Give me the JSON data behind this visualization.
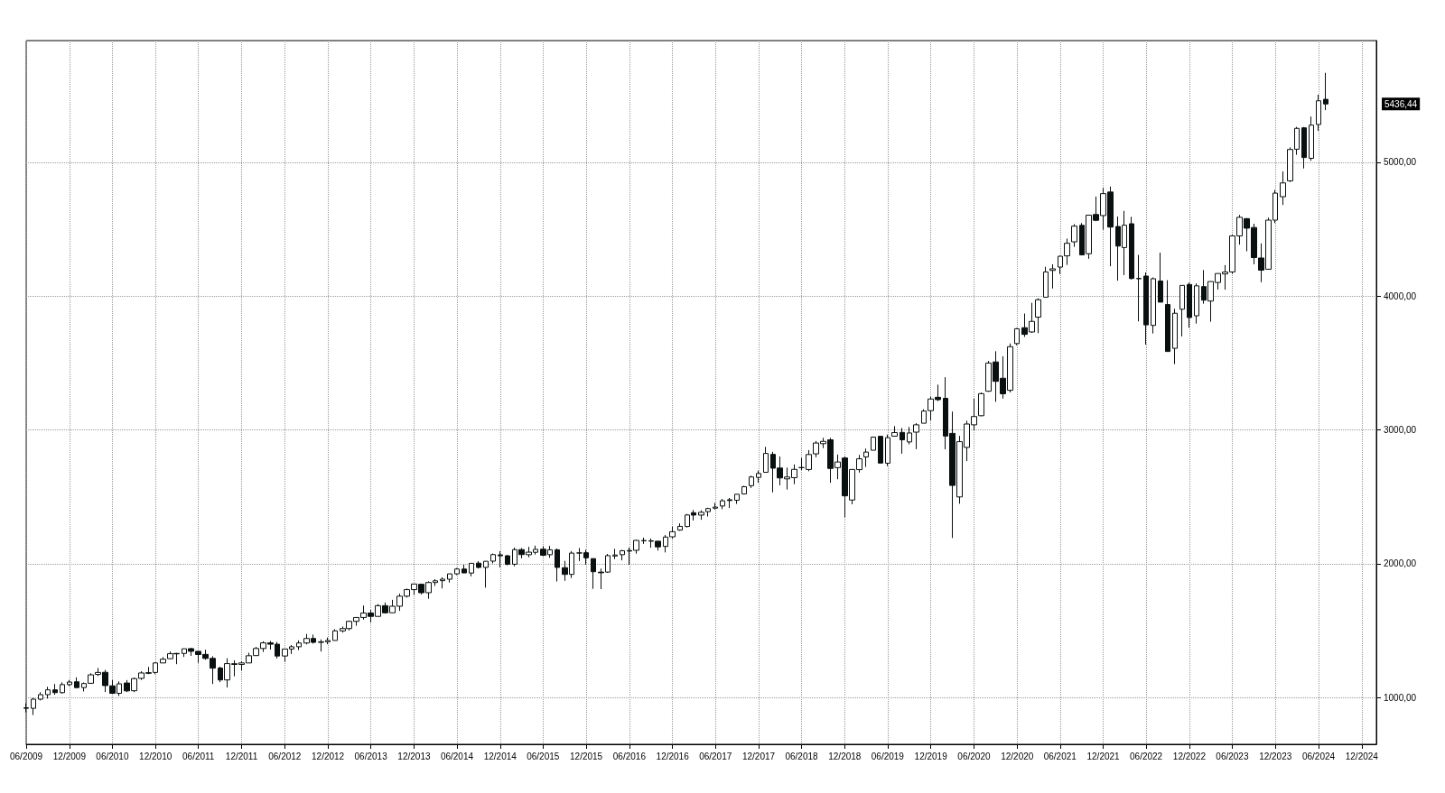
{
  "chart_data": {
    "type": "candlestick",
    "color": "#0a0f0f",
    "grid": true,
    "ylim": [
      650,
      5910
    ],
    "yticks": [
      {
        "value": 1000,
        "label": "1000,00"
      },
      {
        "value": 2000,
        "label": "2000,00"
      },
      {
        "value": 3000,
        "label": "3000,00"
      },
      {
        "value": 4000,
        "label": "4000,00"
      },
      {
        "value": 5000,
        "label": "5000,00"
      }
    ],
    "xlim": [
      "2009-06",
      "2025-02"
    ],
    "xticks": [
      {
        "value": "2009-06",
        "label": "06/2009"
      },
      {
        "value": "2009-12",
        "label": "12/2009"
      },
      {
        "value": "2010-06",
        "label": "06/2010"
      },
      {
        "value": "2010-12",
        "label": "12/2010"
      },
      {
        "value": "2011-06",
        "label": "06/2011"
      },
      {
        "value": "2011-12",
        "label": "12/2011"
      },
      {
        "value": "2012-06",
        "label": "06/2012"
      },
      {
        "value": "2012-12",
        "label": "12/2012"
      },
      {
        "value": "2013-06",
        "label": "06/2013"
      },
      {
        "value": "2013-12",
        "label": "12/2013"
      },
      {
        "value": "2014-06",
        "label": "06/2014"
      },
      {
        "value": "2014-12",
        "label": "12/2014"
      },
      {
        "value": "2015-06",
        "label": "06/2015"
      },
      {
        "value": "2015-12",
        "label": "12/2015"
      },
      {
        "value": "2016-06",
        "label": "06/2016"
      },
      {
        "value": "2016-12",
        "label": "12/2016"
      },
      {
        "value": "2017-06",
        "label": "06/2017"
      },
      {
        "value": "2017-12",
        "label": "12/2017"
      },
      {
        "value": "2018-06",
        "label": "06/2018"
      },
      {
        "value": "2018-12",
        "label": "12/2018"
      },
      {
        "value": "2019-06",
        "label": "06/2019"
      },
      {
        "value": "2019-12",
        "label": "12/2019"
      },
      {
        "value": "2020-06",
        "label": "06/2020"
      },
      {
        "value": "2020-12",
        "label": "12/2020"
      },
      {
        "value": "2021-06",
        "label": "06/2021"
      },
      {
        "value": "2021-12",
        "label": "12/2021"
      },
      {
        "value": "2022-06",
        "label": "06/2022"
      },
      {
        "value": "2022-12",
        "label": "12/2022"
      },
      {
        "value": "2023-06",
        "label": "06/2023"
      },
      {
        "value": "2023-12",
        "label": "12/2023"
      },
      {
        "value": "2024-06",
        "label": "06/2024"
      },
      {
        "value": "2024-12",
        "label": "12/2024"
      }
    ],
    "annotations": [
      "5436,44"
    ],
    "x": [
      "2009-06",
      "2009-07",
      "2009-08",
      "2009-09",
      "2009-10",
      "2009-11",
      "2009-12",
      "2010-01",
      "2010-02",
      "2010-03",
      "2010-04",
      "2010-05",
      "2010-06",
      "2010-07",
      "2010-08",
      "2010-09",
      "2010-10",
      "2010-11",
      "2010-12",
      "2011-01",
      "2011-02",
      "2011-03",
      "2011-04",
      "2011-05",
      "2011-06",
      "2011-07",
      "2011-08",
      "2011-09",
      "2011-10",
      "2011-11",
      "2011-12",
      "2012-01",
      "2012-02",
      "2012-03",
      "2012-04",
      "2012-05",
      "2012-06",
      "2012-07",
      "2012-08",
      "2012-09",
      "2012-10",
      "2012-11",
      "2012-12",
      "2013-01",
      "2013-02",
      "2013-03",
      "2013-04",
      "2013-05",
      "2013-06",
      "2013-07",
      "2013-08",
      "2013-09",
      "2013-10",
      "2013-11",
      "2013-12",
      "2014-01",
      "2014-02",
      "2014-03",
      "2014-04",
      "2014-05",
      "2014-06",
      "2014-07",
      "2014-08",
      "2014-09",
      "2014-10",
      "2014-11",
      "2014-12",
      "2015-01",
      "2015-02",
      "2015-03",
      "2015-04",
      "2015-05",
      "2015-06",
      "2015-07",
      "2015-08",
      "2015-09",
      "2015-10",
      "2015-11",
      "2015-12",
      "2016-01",
      "2016-02",
      "2016-03",
      "2016-04",
      "2016-05",
      "2016-06",
      "2016-07",
      "2016-08",
      "2016-09",
      "2016-10",
      "2016-11",
      "2016-12",
      "2017-01",
      "2017-02",
      "2017-03",
      "2017-04",
      "2017-05",
      "2017-06",
      "2017-07",
      "2017-08",
      "2017-09",
      "2017-10",
      "2017-11",
      "2017-12",
      "2018-01",
      "2018-02",
      "2018-03",
      "2018-04",
      "2018-05",
      "2018-06",
      "2018-07",
      "2018-08",
      "2018-09",
      "2018-10",
      "2018-11",
      "2018-12",
      "2019-01",
      "2019-02",
      "2019-03",
      "2019-04",
      "2019-05",
      "2019-06",
      "2019-07",
      "2019-08",
      "2019-09",
      "2019-10",
      "2019-11",
      "2019-12",
      "2020-01",
      "2020-02",
      "2020-03",
      "2020-04",
      "2020-05",
      "2020-06",
      "2020-07",
      "2020-08",
      "2020-09",
      "2020-10",
      "2020-11",
      "2020-12",
      "2021-01",
      "2021-02",
      "2021-03",
      "2021-04",
      "2021-05",
      "2021-06",
      "2021-07",
      "2021-08",
      "2021-09",
      "2021-10",
      "2021-11",
      "2021-12",
      "2022-01",
      "2022-02",
      "2022-03",
      "2022-04",
      "2022-05",
      "2022-06",
      "2022-07",
      "2022-08",
      "2022-09",
      "2022-10",
      "2022-11",
      "2022-12",
      "2023-01",
      "2023-02",
      "2023-03",
      "2023-04",
      "2023-05",
      "2023-06",
      "2023-07",
      "2023-08",
      "2023-09",
      "2023-10",
      "2023-11",
      "2023-12",
      "2024-01",
      "2024-02",
      "2024-03",
      "2024-04",
      "2024-05",
      "2024-06",
      "2024-07"
    ],
    "ohlc": [
      [
        923,
        956,
        888,
        919
      ],
      [
        919,
        996,
        869,
        987
      ],
      [
        987,
        1039,
        978,
        1021
      ],
      [
        1021,
        1080,
        992,
        1057
      ],
      [
        1057,
        1101,
        1020,
        1036
      ],
      [
        1036,
        1113,
        1029,
        1096
      ],
      [
        1096,
        1130,
        1085,
        1115
      ],
      [
        1117,
        1150,
        1071,
        1074
      ],
      [
        1074,
        1112,
        1045,
        1104
      ],
      [
        1106,
        1181,
        1102,
        1169
      ],
      [
        1172,
        1220,
        1160,
        1187
      ],
      [
        1188,
        1206,
        1041,
        1089
      ],
      [
        1087,
        1131,
        1029,
        1031
      ],
      [
        1031,
        1120,
        1011,
        1102
      ],
      [
        1108,
        1130,
        1040,
        1049
      ],
      [
        1050,
        1149,
        1040,
        1141
      ],
      [
        1143,
        1196,
        1131,
        1183
      ],
      [
        1185,
        1228,
        1174,
        1181
      ],
      [
        1187,
        1263,
        1174,
        1258
      ],
      [
        1258,
        1302,
        1257,
        1286
      ],
      [
        1290,
        1344,
        1289,
        1327
      ],
      [
        1329,
        1333,
        1249,
        1326
      ],
      [
        1329,
        1364,
        1303,
        1364
      ],
      [
        1365,
        1371,
        1311,
        1345
      ],
      [
        1345,
        1346,
        1259,
        1321
      ],
      [
        1322,
        1357,
        1282,
        1292
      ],
      [
        1292,
        1308,
        1101,
        1219
      ],
      [
        1220,
        1230,
        1114,
        1131
      ],
      [
        1131,
        1293,
        1075,
        1253
      ],
      [
        1252,
        1278,
        1158,
        1247
      ],
      [
        1247,
        1270,
        1202,
        1258
      ],
      [
        1258,
        1334,
        1258,
        1312
      ],
      [
        1313,
        1378,
        1312,
        1366
      ],
      [
        1366,
        1420,
        1340,
        1408
      ],
      [
        1408,
        1422,
        1358,
        1398
      ],
      [
        1398,
        1415,
        1292,
        1310
      ],
      [
        1310,
        1364,
        1267,
        1362
      ],
      [
        1362,
        1392,
        1325,
        1379
      ],
      [
        1379,
        1426,
        1354,
        1407
      ],
      [
        1407,
        1475,
        1397,
        1441
      ],
      [
        1441,
        1470,
        1403,
        1412
      ],
      [
        1412,
        1434,
        1343,
        1416
      ],
      [
        1416,
        1448,
        1398,
        1426
      ],
      [
        1426,
        1510,
        1426,
        1498
      ],
      [
        1498,
        1530,
        1485,
        1515
      ],
      [
        1515,
        1574,
        1501,
        1569
      ],
      [
        1569,
        1598,
        1536,
        1598
      ],
      [
        1598,
        1687,
        1582,
        1631
      ],
      [
        1631,
        1654,
        1560,
        1606
      ],
      [
        1606,
        1698,
        1605,
        1686
      ],
      [
        1686,
        1710,
        1627,
        1633
      ],
      [
        1633,
        1730,
        1633,
        1682
      ],
      [
        1682,
        1776,
        1647,
        1757
      ],
      [
        1757,
        1814,
        1747,
        1806
      ],
      [
        1806,
        1850,
        1768,
        1848
      ],
      [
        1846,
        1851,
        1770,
        1783
      ],
      [
        1783,
        1868,
        1738,
        1859
      ],
      [
        1859,
        1884,
        1834,
        1872
      ],
      [
        1873,
        1898,
        1815,
        1884
      ],
      [
        1884,
        1925,
        1859,
        1924
      ],
      [
        1924,
        1968,
        1915,
        1960
      ],
      [
        1960,
        1992,
        1930,
        1931
      ],
      [
        1930,
        2005,
        1905,
        2003
      ],
      [
        2004,
        2019,
        1965,
        1972
      ],
      [
        1972,
        2019,
        1821,
        2018
      ],
      [
        2019,
        2076,
        2002,
        2068
      ],
      [
        2066,
        2093,
        1973,
        2059
      ],
      [
        2059,
        2065,
        1988,
        1995
      ],
      [
        1996,
        2120,
        1981,
        2105
      ],
      [
        2105,
        2117,
        2040,
        2068
      ],
      [
        2067,
        2126,
        2048,
        2086
      ],
      [
        2085,
        2135,
        2068,
        2107
      ],
      [
        2108,
        2130,
        2056,
        2063
      ],
      [
        2067,
        2133,
        2044,
        2104
      ],
      [
        2104,
        2113,
        1867,
        1972
      ],
      [
        1970,
        2021,
        1872,
        1920
      ],
      [
        1920,
        2094,
        1893,
        2079
      ],
      [
        2080,
        2117,
        2020,
        2080
      ],
      [
        2082,
        2104,
        1993,
        2044
      ],
      [
        2038,
        2038,
        1812,
        1940
      ],
      [
        1937,
        1963,
        1810,
        1932
      ],
      [
        1937,
        2073,
        1931,
        2060
      ],
      [
        2057,
        2111,
        2034,
        2065
      ],
      [
        2067,
        2103,
        2025,
        2097
      ],
      [
        2094,
        2121,
        1992,
        2099
      ],
      [
        2100,
        2178,
        2075,
        2174
      ],
      [
        2173,
        2194,
        2148,
        2171
      ],
      [
        2171,
        2188,
        2119,
        2168
      ],
      [
        2168,
        2170,
        2098,
        2126
      ],
      [
        2129,
        2214,
        2084,
        2199
      ],
      [
        2201,
        2278,
        2188,
        2239
      ],
      [
        2251,
        2301,
        2246,
        2279
      ],
      [
        2278,
        2372,
        2271,
        2364
      ],
      [
        2381,
        2401,
        2322,
        2363
      ],
      [
        2363,
        2399,
        2328,
        2384
      ],
      [
        2389,
        2418,
        2353,
        2412
      ],
      [
        2415,
        2454,
        2405,
        2423
      ],
      [
        2431,
        2484,
        2407,
        2470
      ],
      [
        2478,
        2491,
        2417,
        2472
      ],
      [
        2474,
        2520,
        2447,
        2519
      ],
      [
        2521,
        2582,
        2520,
        2575
      ],
      [
        2583,
        2658,
        2566,
        2648
      ],
      [
        2645,
        2695,
        2605,
        2674
      ],
      [
        2683,
        2873,
        2682,
        2824
      ],
      [
        2817,
        2836,
        2533,
        2714
      ],
      [
        2715,
        2801,
        2586,
        2641
      ],
      [
        2634,
        2718,
        2554,
        2648
      ],
      [
        2643,
        2742,
        2594,
        2705
      ],
      [
        2718,
        2791,
        2699,
        2718
      ],
      [
        2704,
        2849,
        2691,
        2816
      ],
      [
        2821,
        2917,
        2796,
        2902
      ],
      [
        2897,
        2941,
        2864,
        2914
      ],
      [
        2926,
        2940,
        2604,
        2712
      ],
      [
        2718,
        2816,
        2631,
        2760
      ],
      [
        2790,
        2800,
        2347,
        2507
      ],
      [
        2476,
        2708,
        2444,
        2704
      ],
      [
        2703,
        2813,
        2681,
        2784
      ],
      [
        2798,
        2860,
        2723,
        2834
      ],
      [
        2848,
        2950,
        2848,
        2946
      ],
      [
        2952,
        2955,
        2751,
        2752
      ],
      [
        2751,
        2965,
        2729,
        2942
      ],
      [
        2953,
        3028,
        2953,
        2980
      ],
      [
        2981,
        3014,
        2822,
        2926
      ],
      [
        2910,
        3022,
        2892,
        2977
      ],
      [
        2983,
        3050,
        2856,
        3038
      ],
      [
        3050,
        3154,
        3050,
        3141
      ],
      [
        3144,
        3248,
        3070,
        3231
      ],
      [
        3244,
        3338,
        3215,
        3226
      ],
      [
        3236,
        3394,
        2855,
        2954
      ],
      [
        2974,
        3137,
        2192,
        2585
      ],
      [
        2499,
        2955,
        2448,
        2912
      ],
      [
        2869,
        3068,
        2767,
        3044
      ],
      [
        3038,
        3233,
        2999,
        3100
      ],
      [
        3106,
        3280,
        3102,
        3271
      ],
      [
        3289,
        3515,
        3285,
        3500
      ],
      [
        3508,
        3588,
        3210,
        3363
      ],
      [
        3386,
        3550,
        3234,
        3270
      ],
      [
        3296,
        3646,
        3280,
        3622
      ],
      [
        3645,
        3761,
        3633,
        3756
      ],
      [
        3764,
        3870,
        3695,
        3714
      ],
      [
        3732,
        3950,
        3725,
        3811
      ],
      [
        3843,
        3984,
        3723,
        3973
      ],
      [
        3992,
        4219,
        3992,
        4181
      ],
      [
        4192,
        4238,
        4057,
        4204
      ],
      [
        4217,
        4302,
        4165,
        4298
      ],
      [
        4301,
        4430,
        4233,
        4395
      ],
      [
        4406,
        4538,
        4368,
        4523
      ],
      [
        4529,
        4546,
        4306,
        4308
      ],
      [
        4317,
        4608,
        4279,
        4605
      ],
      [
        4610,
        4744,
        4560,
        4567
      ],
      [
        4602,
        4808,
        4496,
        4766
      ],
      [
        4778,
        4819,
        4223,
        4516
      ],
      [
        4520,
        4595,
        4115,
        4374
      ],
      [
        4363,
        4637,
        4157,
        4530
      ],
      [
        4541,
        4593,
        4124,
        4132
      ],
      [
        4130,
        4308,
        3811,
        4132
      ],
      [
        4150,
        4177,
        3637,
        3785
      ],
      [
        3781,
        4140,
        3721,
        4130
      ],
      [
        4113,
        4325,
        3955,
        3955
      ],
      [
        3937,
        4119,
        3585,
        3586
      ],
      [
        3610,
        3905,
        3492,
        3872
      ],
      [
        3902,
        4080,
        3699,
        4080
      ],
      [
        4087,
        4101,
        3764,
        3840
      ],
      [
        3853,
        4095,
        3795,
        4077
      ],
      [
        4071,
        4195,
        3943,
        3970
      ],
      [
        3963,
        4110,
        3809,
        4109
      ],
      [
        4102,
        4170,
        4049,
        4169
      ],
      [
        4166,
        4232,
        4048,
        4180
      ],
      [
        4181,
        4458,
        4167,
        4450
      ],
      [
        4450,
        4607,
        4385,
        4589
      ],
      [
        4579,
        4584,
        4335,
        4508
      ],
      [
        4513,
        4541,
        4238,
        4288
      ],
      [
        4285,
        4394,
        4104,
        4194
      ],
      [
        4201,
        4587,
        4197,
        4568
      ],
      [
        4568,
        4794,
        4546,
        4770
      ],
      [
        4743,
        4932,
        4682,
        4846
      ],
      [
        4862,
        5112,
        4853,
        5096
      ],
      [
        5098,
        5265,
        5056,
        5254
      ],
      [
        5258,
        5264,
        4954,
        5036
      ],
      [
        5030,
        5342,
        5012,
        5278
      ],
      [
        5283,
        5506,
        5235,
        5460
      ],
      [
        5471,
        5669,
        5390,
        5436.44
      ]
    ]
  }
}
